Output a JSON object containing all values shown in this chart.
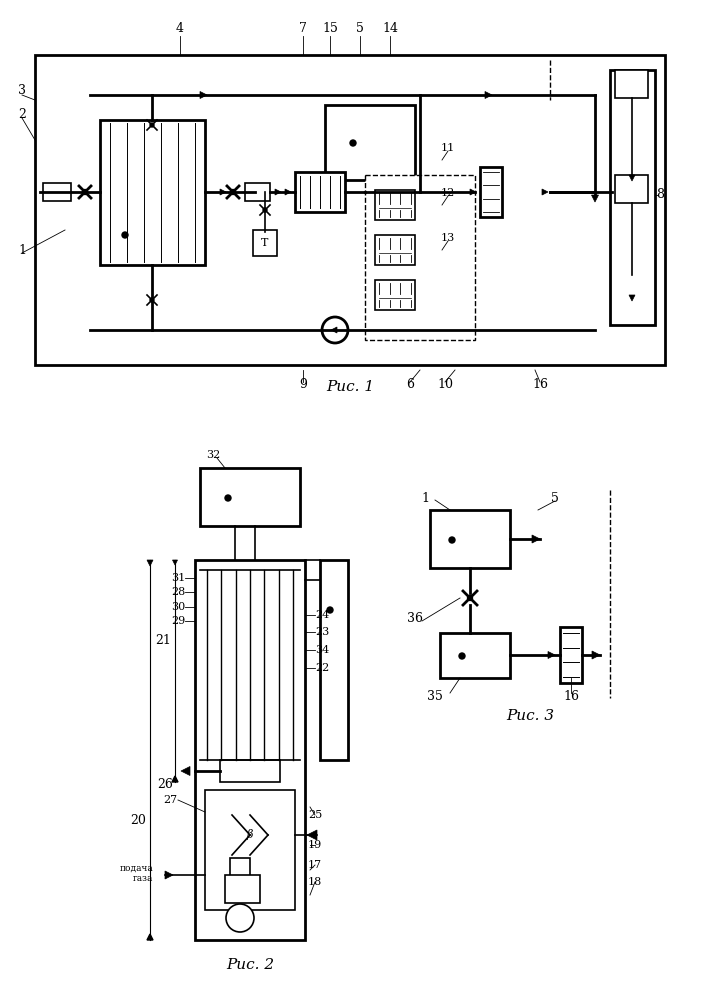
{
  "bg_color": "#ffffff",
  "fig1_caption": "Рис. 1",
  "fig2_caption": "Рис. 2",
  "fig3_caption": "Рис. 3"
}
